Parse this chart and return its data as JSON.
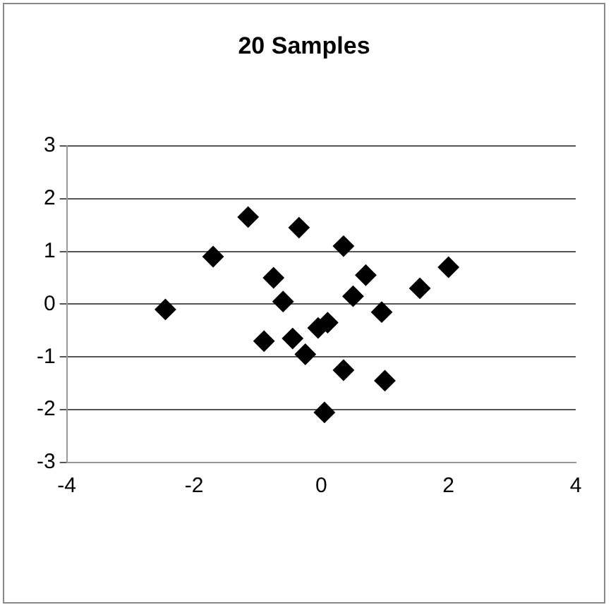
{
  "chart_data": {
    "type": "scatter",
    "title": "20 Samples",
    "marker": "diamond",
    "grid": "y",
    "legend": false,
    "xlim": [
      -4,
      4
    ],
    "xticks": [
      -4,
      -2,
      0,
      2,
      4
    ],
    "ylim": [
      -3,
      3
    ],
    "yticks": [
      -3,
      -2,
      -1,
      0,
      1,
      2,
      3
    ],
    "series": [
      {
        "color": "#000000",
        "x": [
          -2.45,
          -1.7,
          -1.15,
          -0.35,
          0.35,
          -0.75,
          -0.6,
          0.7,
          0.5,
          1.55,
          2.0,
          0.95,
          -0.05,
          0.1,
          -0.9,
          -0.45,
          -0.25,
          0.35,
          1.0,
          0.05
        ],
        "values": [
          -0.1,
          0.9,
          1.65,
          1.45,
          1.1,
          0.5,
          0.05,
          0.55,
          0.15,
          0.3,
          0.7,
          -0.15,
          -0.45,
          -0.35,
          -0.7,
          -0.65,
          -0.95,
          -1.25,
          -1.45,
          -2.05
        ]
      }
    ]
  }
}
